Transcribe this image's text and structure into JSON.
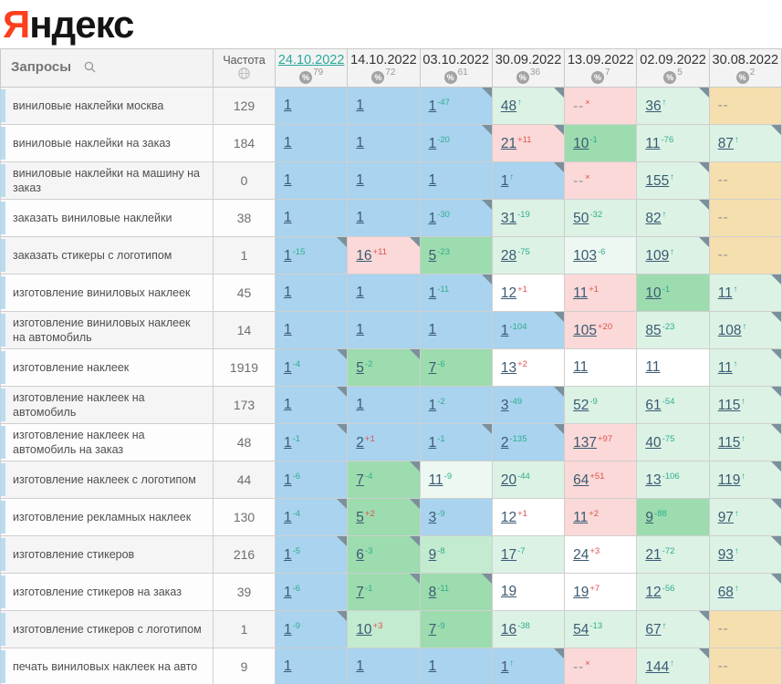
{
  "brand": {
    "logo_first_letter": "Я",
    "logo_rest": "ндекс"
  },
  "colors": {
    "logo-red": "#fc3f1d",
    "blue": "#a9d3ee",
    "green": "#9cdcae",
    "greenlight": "#c3ebd0",
    "mint": "#dcf2e4",
    "mintlight": "#ecf8f1",
    "pink": "#fad9d8",
    "tan": "#f5dfae",
    "border": "#cfcfcf",
    "headborder": "#c9c9c9",
    "headbg": "#f3f3f3",
    "headtext": "#757575",
    "datetext": "#333333",
    "datelink": "#2aa99b",
    "badge": "#a3a3a3",
    "covn": "#999999",
    "qbg": "#f5f5f5",
    "qbg2": "#fdfdfd",
    "stripe": "#b7ddf2",
    "querytext": "#4f4f4f",
    "freqtext": "#6e6e6e",
    "link": "#3b5a73",
    "up": "#2fae8e",
    "down": "#e0524f",
    "dash": "#8d8d8d",
    "corner": "#7b909b"
  },
  "table": {
    "queries_header": "Запросы",
    "frequency_header": "Частота",
    "columns": [
      {
        "date": "24.10.2022",
        "coverage": "79",
        "active": true
      },
      {
        "date": "14.10.2022",
        "coverage": "72",
        "active": false
      },
      {
        "date": "03.10.2022",
        "coverage": "61",
        "active": false
      },
      {
        "date": "30.09.2022",
        "coverage": "36",
        "active": false
      },
      {
        "date": "13.09.2022",
        "coverage": "7",
        "active": false
      },
      {
        "date": "02.09.2022",
        "coverage": "5",
        "active": false
      },
      {
        "date": "30.08.2022",
        "coverage": "2",
        "active": false
      }
    ],
    "rows": [
      {
        "query": "виниловые наклейки москва",
        "frequency": "129",
        "cells": [
          {
            "pos": "1",
            "bg": "blue"
          },
          {
            "pos": "1",
            "bg": "blue"
          },
          {
            "pos": "1",
            "delta": "-47",
            "bg": "blue",
            "corner": true
          },
          {
            "pos": "48",
            "arrow": true,
            "bg": "mint",
            "corner": true
          },
          {
            "pos": "--",
            "x": true,
            "bg": "pink"
          },
          {
            "pos": "36",
            "arrow": true,
            "bg": "mint",
            "corner": true
          },
          {
            "pos": "--",
            "bg": "tan"
          }
        ]
      },
      {
        "query": "виниловые наклейки на заказ",
        "frequency": "184",
        "cells": [
          {
            "pos": "1",
            "bg": "blue"
          },
          {
            "pos": "1",
            "bg": "blue"
          },
          {
            "pos": "1",
            "delta": "-20",
            "bg": "blue",
            "corner": true
          },
          {
            "pos": "21",
            "delta": "+11",
            "bg": "pink",
            "corner": true
          },
          {
            "pos": "10",
            "delta": "-1",
            "bg": "green"
          },
          {
            "pos": "11",
            "delta": "-76",
            "bg": "mint"
          },
          {
            "pos": "87",
            "arrow": true,
            "bg": "mint",
            "corner": true
          }
        ]
      },
      {
        "query": "виниловые наклейки на машину на заказ",
        "frequency": "0",
        "cells": [
          {
            "pos": "1",
            "bg": "blue"
          },
          {
            "pos": "1",
            "bg": "blue"
          },
          {
            "pos": "1",
            "bg": "blue"
          },
          {
            "pos": "1",
            "arrow": true,
            "bg": "blue",
            "corner": true
          },
          {
            "pos": "--",
            "x": true,
            "bg": "pink"
          },
          {
            "pos": "155",
            "arrow": true,
            "bg": "mint",
            "corner": true
          },
          {
            "pos": "--",
            "bg": "tan"
          }
        ]
      },
      {
        "query": "заказать виниловые наклейки",
        "frequency": "38",
        "cells": [
          {
            "pos": "1",
            "bg": "blue"
          },
          {
            "pos": "1",
            "bg": "blue"
          },
          {
            "pos": "1",
            "delta": "-30",
            "bg": "blue",
            "corner": true
          },
          {
            "pos": "31",
            "delta": "-19",
            "bg": "mint"
          },
          {
            "pos": "50",
            "delta": "-32",
            "bg": "mint"
          },
          {
            "pos": "82",
            "arrow": true,
            "bg": "mint",
            "corner": true
          },
          {
            "pos": "--",
            "bg": "tan"
          }
        ]
      },
      {
        "query": "заказать стикеры с логотипом",
        "frequency": "1",
        "cells": [
          {
            "pos": "1",
            "delta": "-15",
            "bg": "blue",
            "corner": true
          },
          {
            "pos": "16",
            "delta": "+11",
            "bg": "pink",
            "corner": true
          },
          {
            "pos": "5",
            "delta": "-23",
            "bg": "green"
          },
          {
            "pos": "28",
            "delta": "-75",
            "bg": "mint"
          },
          {
            "pos": "103",
            "delta": "-6",
            "bg": "mintlight"
          },
          {
            "pos": "109",
            "arrow": true,
            "bg": "mint",
            "corner": true
          },
          {
            "pos": "--",
            "bg": "tan"
          }
        ]
      },
      {
        "query": "изготовление виниловых наклеек",
        "frequency": "45",
        "cells": [
          {
            "pos": "1",
            "bg": "blue"
          },
          {
            "pos": "1",
            "bg": "blue"
          },
          {
            "pos": "1",
            "delta": "-11",
            "bg": "blue",
            "corner": true
          },
          {
            "pos": "12",
            "delta": "+1",
            "bg": "white"
          },
          {
            "pos": "11",
            "delta": "+1",
            "bg": "pink"
          },
          {
            "pos": "10",
            "delta": "-1",
            "bg": "green"
          },
          {
            "pos": "11",
            "arrow": true,
            "bg": "mint",
            "corner": true
          }
        ]
      },
      {
        "query": "изготовление виниловых наклеек на автомобиль",
        "frequency": "14",
        "cells": [
          {
            "pos": "1",
            "bg": "blue"
          },
          {
            "pos": "1",
            "bg": "blue"
          },
          {
            "pos": "1",
            "bg": "blue"
          },
          {
            "pos": "1",
            "delta": "-104",
            "bg": "blue",
            "corner": true
          },
          {
            "pos": "105",
            "delta": "+20",
            "bg": "pink"
          },
          {
            "pos": "85",
            "delta": "-23",
            "bg": "mint"
          },
          {
            "pos": "108",
            "arrow": true,
            "bg": "mint",
            "corner": true
          }
        ]
      },
      {
        "query": "изготовление наклеек",
        "frequency": "1919",
        "cells": [
          {
            "pos": "1",
            "delta": "-4",
            "bg": "blue",
            "corner": true
          },
          {
            "pos": "5",
            "delta": "-2",
            "bg": "green",
            "corner": true
          },
          {
            "pos": "7",
            "delta": "-6",
            "bg": "green"
          },
          {
            "pos": "13",
            "delta": "+2",
            "bg": "white"
          },
          {
            "pos": "11",
            "bg": "white"
          },
          {
            "pos": "11",
            "bg": "white"
          },
          {
            "pos": "11",
            "arrow": true,
            "bg": "mint",
            "corner": true
          }
        ]
      },
      {
        "query": "изготовление наклеек на автомобиль",
        "frequency": "173",
        "cells": [
          {
            "pos": "1",
            "bg": "blue",
            "corner": true
          },
          {
            "pos": "1",
            "bg": "blue"
          },
          {
            "pos": "1",
            "delta": "-2",
            "bg": "blue"
          },
          {
            "pos": "3",
            "delta": "-49",
            "bg": "blue",
            "corner": true
          },
          {
            "pos": "52",
            "delta": "-9",
            "bg": "mint"
          },
          {
            "pos": "61",
            "delta": "-54",
            "bg": "mint"
          },
          {
            "pos": "115",
            "arrow": true,
            "bg": "mint",
            "corner": true
          }
        ]
      },
      {
        "query": "изготовление наклеек на автомобиль на заказ",
        "frequency": "48",
        "cells": [
          {
            "pos": "1",
            "delta": "-1",
            "bg": "blue",
            "corner": true
          },
          {
            "pos": "2",
            "delta": "+1",
            "bg": "blue"
          },
          {
            "pos": "1",
            "delta": "-1",
            "bg": "blue",
            "corner": true
          },
          {
            "pos": "2",
            "delta": "-135",
            "bg": "blue",
            "corner": true
          },
          {
            "pos": "137",
            "delta": "+97",
            "bg": "pink"
          },
          {
            "pos": "40",
            "delta": "-75",
            "bg": "mint"
          },
          {
            "pos": "115",
            "arrow": true,
            "bg": "mint",
            "corner": true
          }
        ]
      },
      {
        "query": "изготовление наклеек с логотипом",
        "frequency": "44",
        "cells": [
          {
            "pos": "1",
            "delta": "-6",
            "bg": "blue"
          },
          {
            "pos": "7",
            "delta": "-4",
            "bg": "green",
            "corner": true
          },
          {
            "pos": "11",
            "delta": "-9",
            "bg": "mintlight"
          },
          {
            "pos": "20",
            "delta": "-44",
            "bg": "mint"
          },
          {
            "pos": "64",
            "delta": "+51",
            "bg": "pink"
          },
          {
            "pos": "13",
            "delta": "-106",
            "bg": "mint"
          },
          {
            "pos": "119",
            "arrow": true,
            "bg": "mint",
            "corner": true
          }
        ]
      },
      {
        "query": "изготовление рекламных наклеек",
        "frequency": "130",
        "cells": [
          {
            "pos": "1",
            "delta": "-4",
            "bg": "blue",
            "corner": true
          },
          {
            "pos": "5",
            "delta": "+2",
            "bg": "green",
            "corner": true
          },
          {
            "pos": "3",
            "delta": "-9",
            "bg": "blue"
          },
          {
            "pos": "12",
            "delta": "+1",
            "bg": "white"
          },
          {
            "pos": "11",
            "delta": "+2",
            "bg": "pink"
          },
          {
            "pos": "9",
            "delta": "-88",
            "bg": "green"
          },
          {
            "pos": "97",
            "arrow": true,
            "bg": "mint",
            "corner": true
          }
        ]
      },
      {
        "query": "изготовление стикеров",
        "frequency": "216",
        "cells": [
          {
            "pos": "1",
            "delta": "-5",
            "bg": "blue",
            "corner": true
          },
          {
            "pos": "6",
            "delta": "-3",
            "bg": "green",
            "corner": true
          },
          {
            "pos": "9",
            "delta": "-8",
            "bg": "greenlight"
          },
          {
            "pos": "17",
            "delta": "-7",
            "bg": "mint"
          },
          {
            "pos": "24",
            "delta": "+3",
            "bg": "white"
          },
          {
            "pos": "21",
            "delta": "-72",
            "bg": "mint"
          },
          {
            "pos": "93",
            "arrow": true,
            "bg": "mint",
            "corner": true
          }
        ]
      },
      {
        "query": "изготовление стикеров на заказ",
        "frequency": "39",
        "cells": [
          {
            "pos": "1",
            "delta": "-6",
            "bg": "blue"
          },
          {
            "pos": "7",
            "delta": "-1",
            "bg": "green",
            "corner": true
          },
          {
            "pos": "8",
            "delta": "-11",
            "bg": "green",
            "corner": true
          },
          {
            "pos": "19",
            "bg": "white"
          },
          {
            "pos": "19",
            "delta": "+7",
            "bg": "white"
          },
          {
            "pos": "12",
            "delta": "-56",
            "bg": "mint"
          },
          {
            "pos": "68",
            "arrow": true,
            "bg": "mint",
            "corner": true
          }
        ]
      },
      {
        "query": "изготовление стикеров с логотипом",
        "frequency": "1",
        "cells": [
          {
            "pos": "1",
            "delta": "-9",
            "bg": "blue",
            "corner": true
          },
          {
            "pos": "10",
            "delta": "+3",
            "bg": "greenlight"
          },
          {
            "pos": "7",
            "delta": "-9",
            "bg": "green"
          },
          {
            "pos": "16",
            "delta": "-38",
            "bg": "mint"
          },
          {
            "pos": "54",
            "delta": "-13",
            "bg": "mint"
          },
          {
            "pos": "67",
            "arrow": true,
            "bg": "mint",
            "corner": true
          },
          {
            "pos": "--",
            "bg": "tan"
          }
        ]
      },
      {
        "query": "печать виниловых наклеек на авто",
        "frequency": "9",
        "cells": [
          {
            "pos": "1",
            "bg": "blue"
          },
          {
            "pos": "1",
            "bg": "blue"
          },
          {
            "pos": "1",
            "bg": "blue"
          },
          {
            "pos": "1",
            "arrow": true,
            "bg": "blue",
            "corner": true
          },
          {
            "pos": "--",
            "x": true,
            "bg": "pink"
          },
          {
            "pos": "144",
            "arrow": true,
            "bg": "mint",
            "corner": true
          },
          {
            "pos": "--",
            "bg": "tan"
          }
        ]
      }
    ]
  }
}
